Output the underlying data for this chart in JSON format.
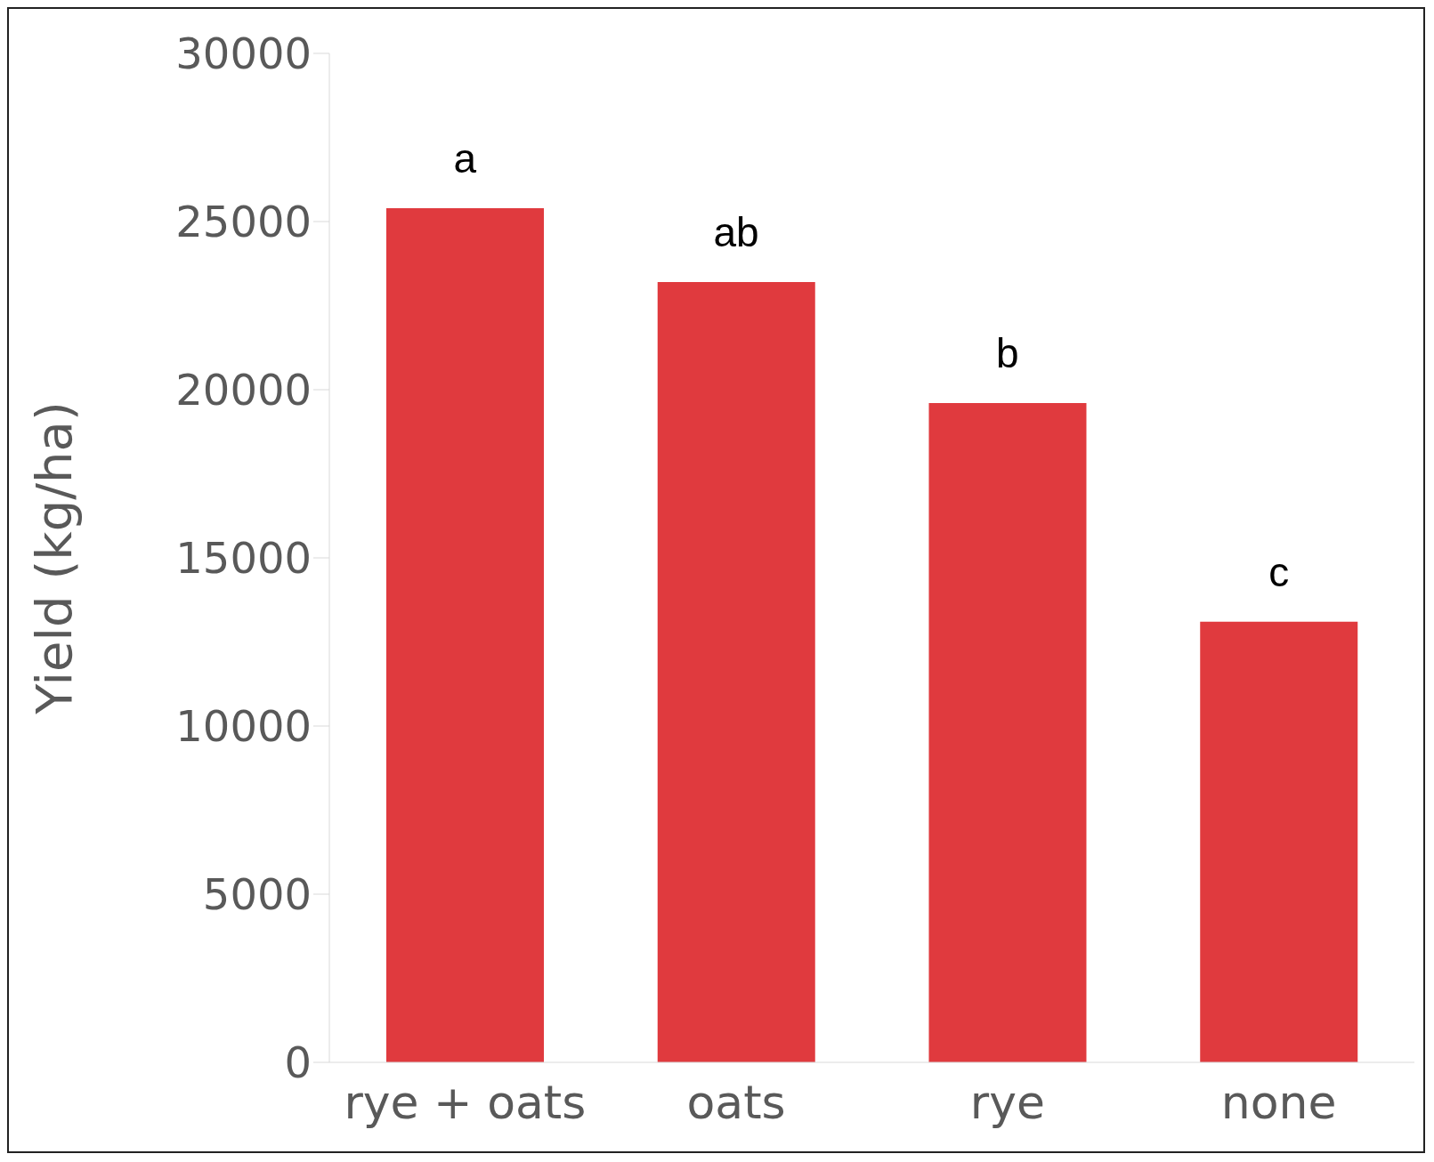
{
  "chart_data": {
    "type": "bar",
    "ylabel": "Yield (kg/ha)",
    "categories": [
      "rye + oats",
      "oats",
      "rye",
      "none"
    ],
    "values": [
      25400,
      23200,
      19600,
      13100
    ],
    "color": "#e03a3e",
    "ylim": [
      0,
      30000
    ],
    "yticks": [
      0,
      5000,
      10000,
      15000,
      20000,
      25000,
      30000
    ],
    "grid": false,
    "legend": false,
    "annotations": [
      {
        "text": "a",
        "x": "rye + oats",
        "y": 25400
      },
      {
        "text": "ab",
        "x": "oats",
        "y": 23200
      },
      {
        "text": "b",
        "x": "rye",
        "y": 19600
      },
      {
        "text": "c",
        "x": "none",
        "y": 13100
      }
    ]
  }
}
